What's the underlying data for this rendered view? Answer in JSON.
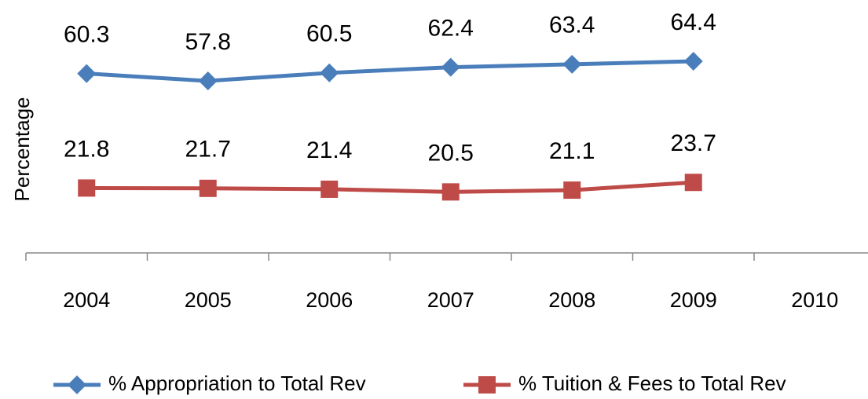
{
  "chart_data": {
    "type": "line",
    "y_label": "Percentage",
    "categories": [
      "2004",
      "2005",
      "2006",
      "2007",
      "2008",
      "2009",
      "2010"
    ],
    "series": [
      {
        "name": "% Appropriation to Total Rev",
        "color": "#4a7ebb",
        "marker": "diamond",
        "values": [
          60.3,
          57.8,
          60.5,
          62.4,
          63.4,
          64.4,
          null
        ]
      },
      {
        "name": "% Tuition & Fees to Total Rev",
        "color": "#be4b48",
        "marker": "square",
        "values": [
          21.8,
          21.7,
          21.4,
          20.5,
          21.1,
          23.7,
          null
        ]
      }
    ],
    "ylim": [
      0,
      85
    ],
    "legend": "bottom"
  }
}
